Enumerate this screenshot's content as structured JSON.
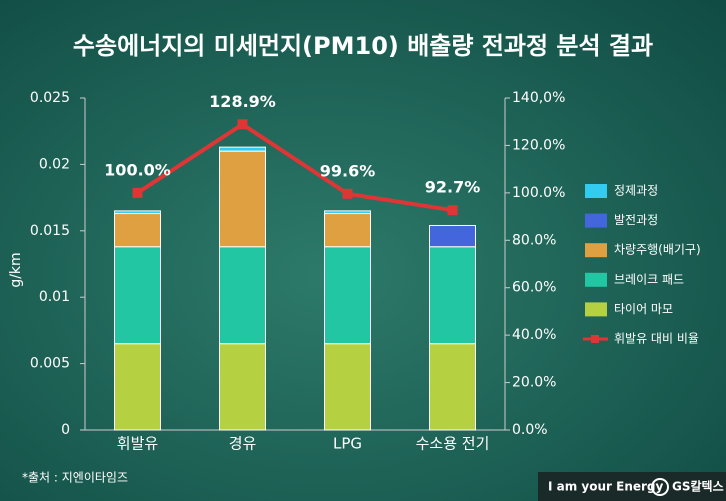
{
  "chart_data": {
    "type": "bar",
    "title": "수송에너지의 미세먼지(PM10) 배출량 전과정 분석 결과",
    "y_label": "g/km",
    "categories": [
      "휘발유",
      "경유",
      "LPG",
      "수소용 전기"
    ],
    "series": [
      {
        "name": "타이어 마모",
        "color": "#b5d040",
        "values": [
          0.0065,
          0.0065,
          0.0065,
          0.0065
        ]
      },
      {
        "name": "브레이크 패드",
        "color": "#22c6a2",
        "values": [
          0.0073,
          0.0073,
          0.0073,
          0.0073
        ]
      },
      {
        "name": "차량주행(배기구)",
        "color": "#dea040",
        "values": [
          0.0025,
          0.0072,
          0.0025,
          0
        ]
      },
      {
        "name": "발전과정",
        "color": "#4466dd",
        "values": [
          0,
          0,
          0,
          0.0016
        ]
      },
      {
        "name": "정제과정",
        "color": "#33ccf0",
        "values": [
          0.0002,
          0.0003,
          0.0002,
          0
        ]
      },
      {
        "name": "휘발유 대비 비율",
        "type": "line",
        "axis": "y2",
        "color": "#e03535",
        "values": [
          100.0,
          128.9,
          99.6,
          92.7
        ],
        "value_labels": [
          "100.0%",
          "128.9%",
          "99.6%",
          "92.7%"
        ]
      }
    ],
    "ylim": [
      0,
      0.025
    ],
    "yticks": [
      0,
      0.005,
      0.01,
      0.015,
      0.02,
      0.025
    ],
    "y2lim": [
      0,
      140
    ],
    "y2ticks": [
      {
        "value": 0,
        "label": "0.0%"
      },
      {
        "value": 20,
        "label": "20.0%"
      },
      {
        "value": 40,
        "label": "40.0%"
      },
      {
        "value": 60,
        "label": "60.0%"
      },
      {
        "value": 80,
        "label": "80.0%"
      },
      {
        "value": 100,
        "label": "100.0%"
      },
      {
        "value": 120,
        "label": "120.0%"
      },
      {
        "value": 140,
        "label": "140,0%"
      }
    ],
    "legend": "right",
    "source": "*출처 : 지엔이타임즈",
    "slogan": "I am your Energy",
    "brand": "GS칼텍스"
  }
}
